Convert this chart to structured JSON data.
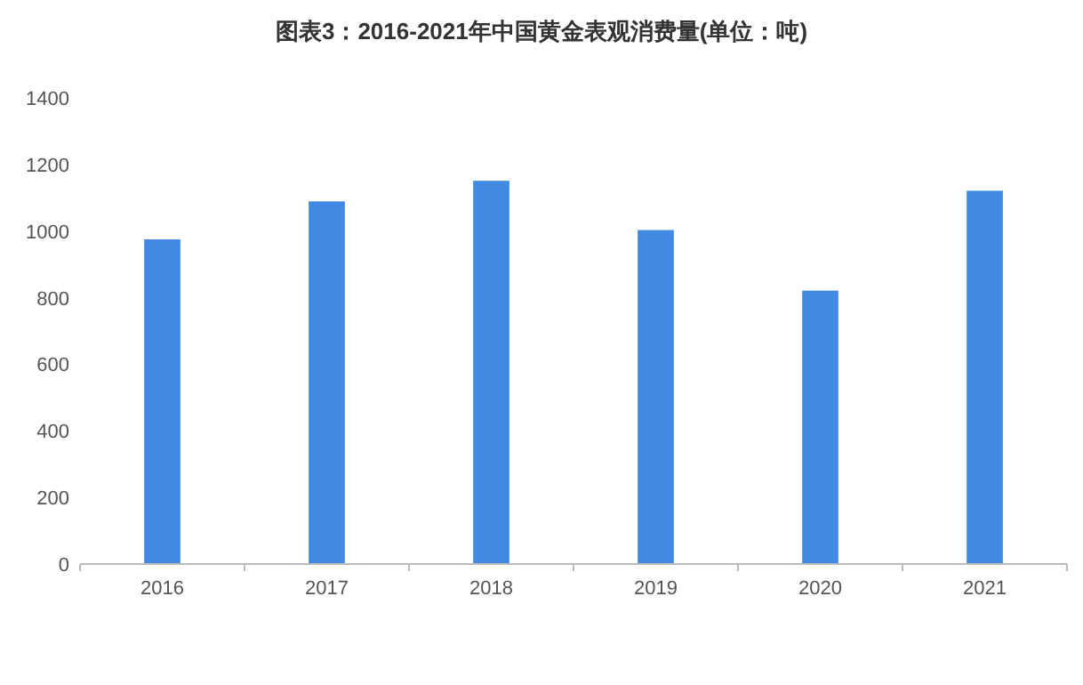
{
  "chart_data": {
    "type": "bar",
    "title": "图表3：2016-2021年中国黄金表观消费量(单位：吨)",
    "categories": [
      "2016",
      "2017",
      "2018",
      "2019",
      "2020",
      "2021"
    ],
    "values": [
      975,
      1089,
      1151,
      1003,
      821,
      1121
    ],
    "color": "#4289e3",
    "ylim": [
      0,
      1400
    ],
    "yticks": [
      0,
      200,
      400,
      600,
      800,
      1000,
      1200,
      1400
    ]
  }
}
